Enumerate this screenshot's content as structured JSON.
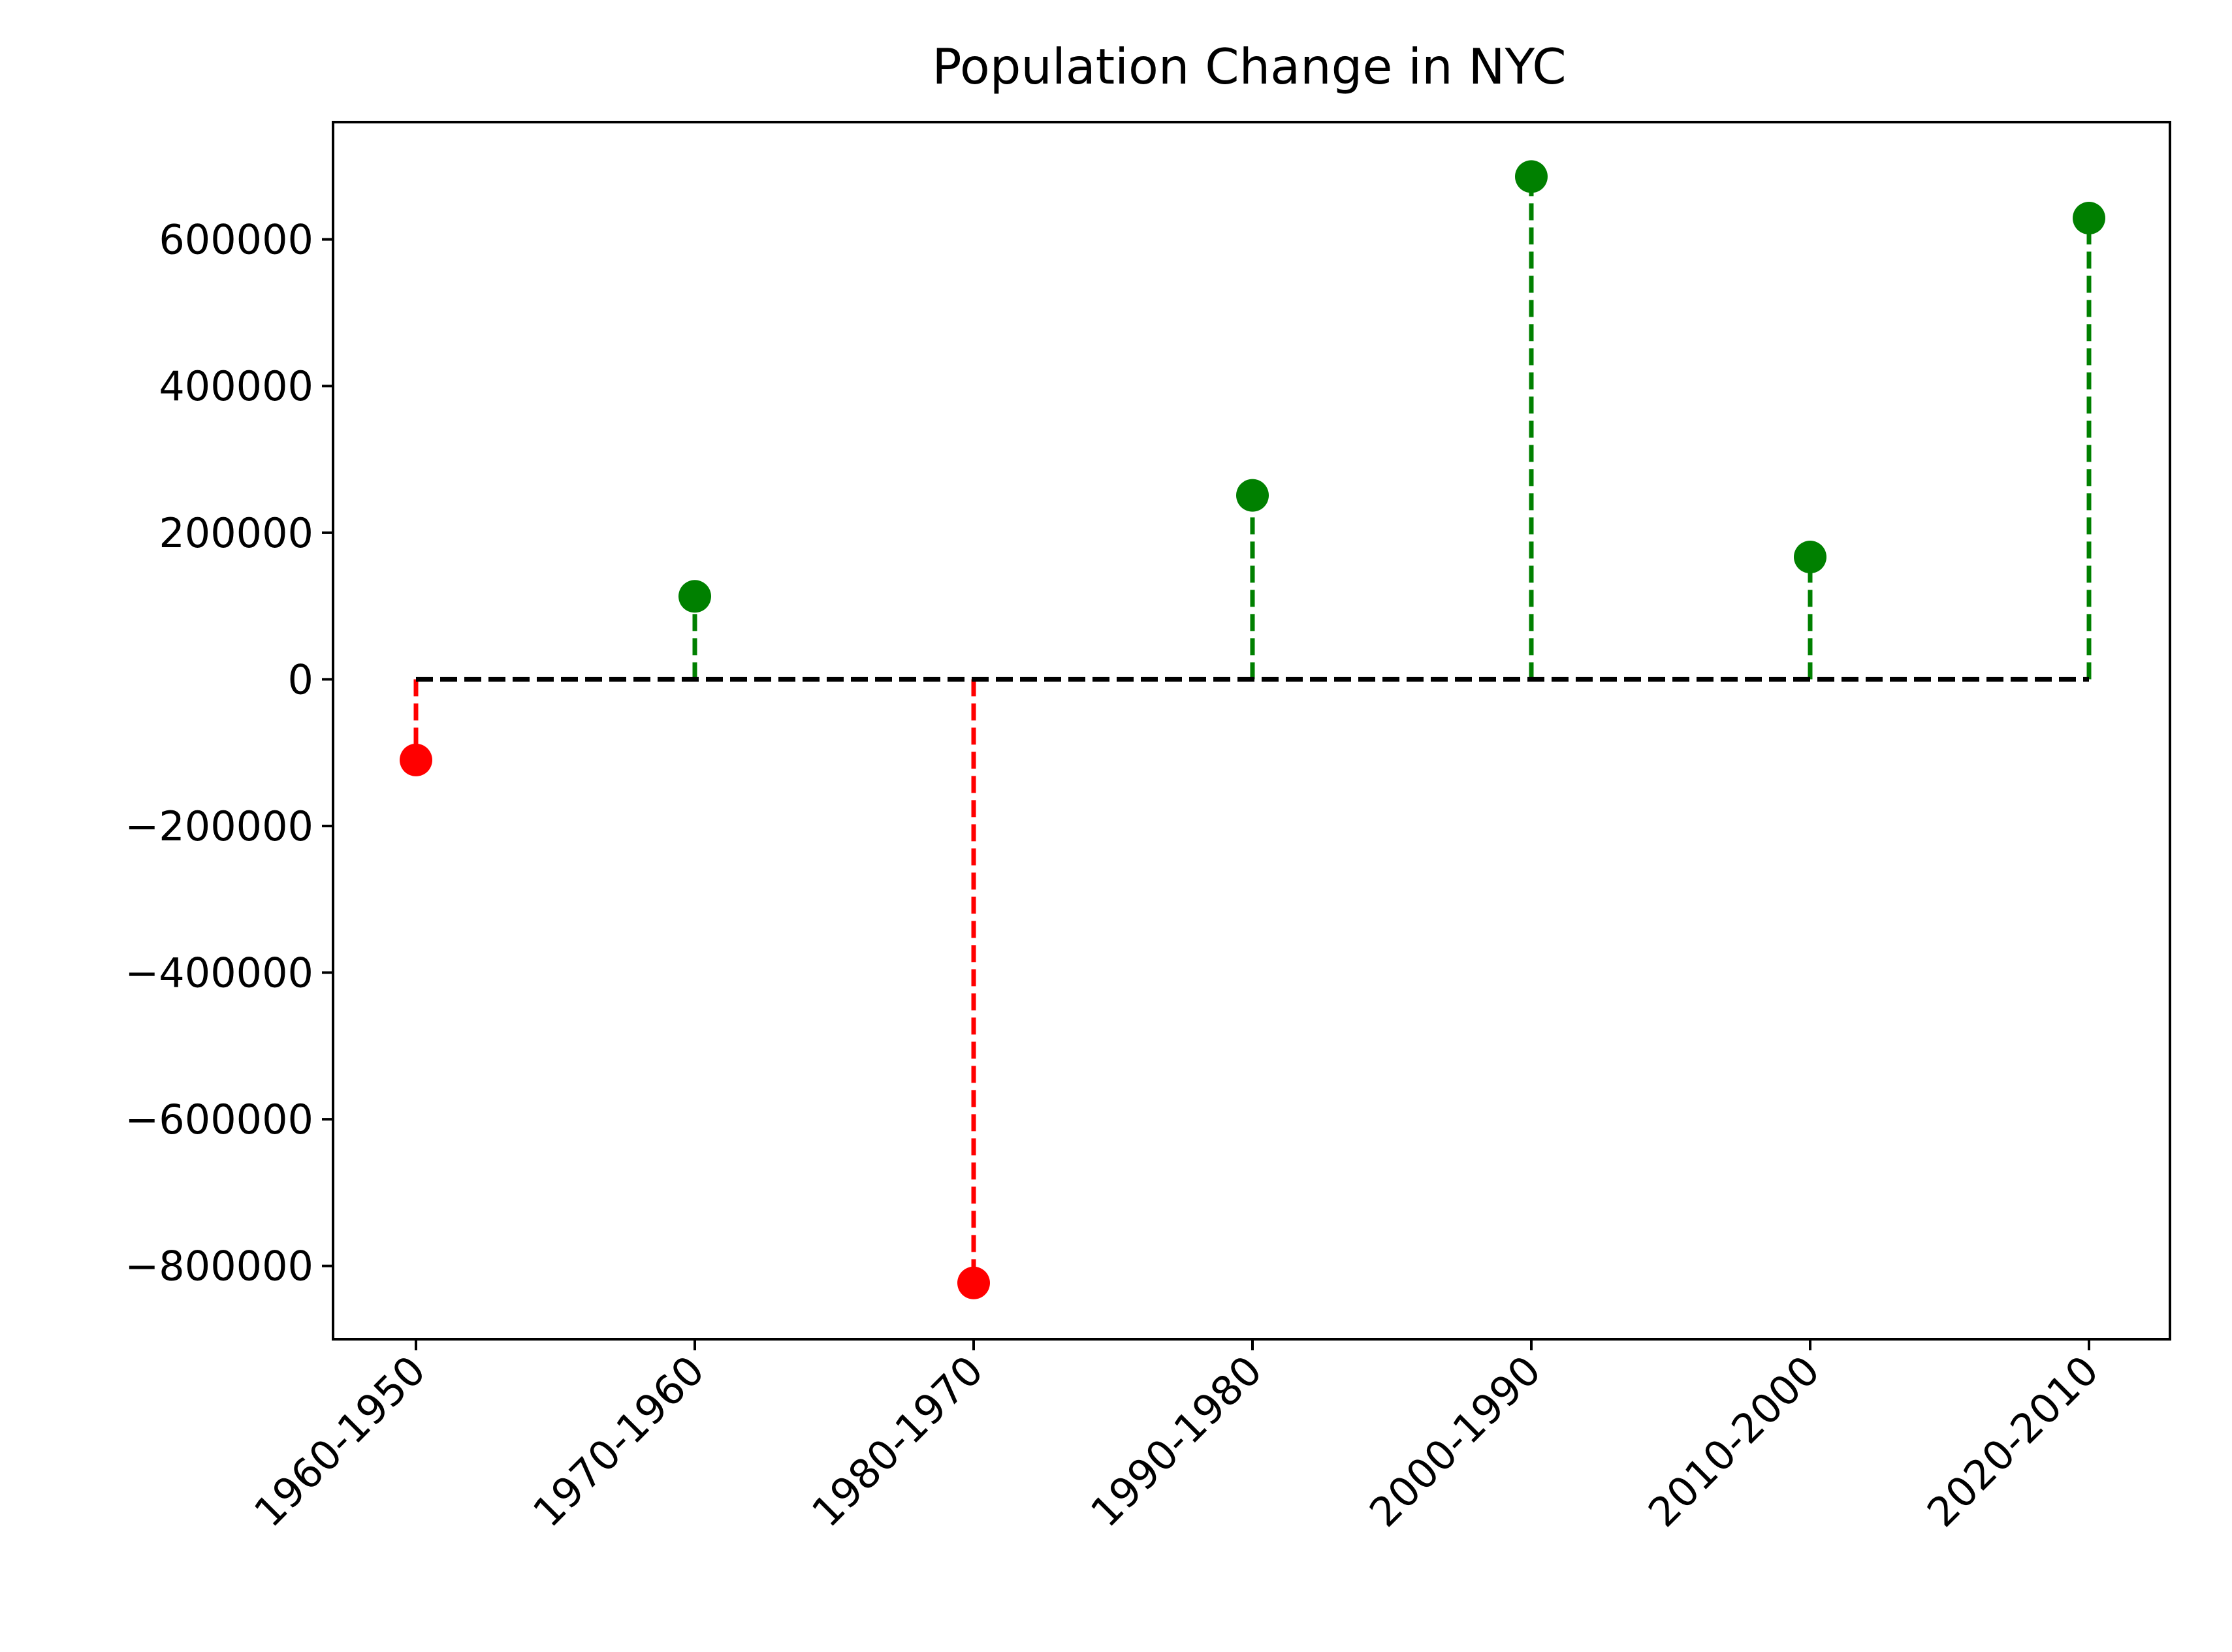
{
  "chart_data": {
    "type": "stem",
    "title": "Population Change in NYC",
    "xlabel": "",
    "ylabel": "",
    "categories": [
      "1960-1950",
      "1970-1960",
      "1980-1970",
      "1990-1980",
      "2000-1990",
      "2010-2000",
      "2020-2010"
    ],
    "values": [
      -109973,
      113196,
      -823223,
      250925,
      685714,
      166855,
      629057
    ],
    "ylim": [
      -900000,
      760000
    ],
    "yticks": [
      -800000,
      -600000,
      -400000,
      -200000,
      0,
      200000,
      400000,
      600000
    ],
    "ytick_labels": [
      "−800000",
      "−600000",
      "−400000",
      "−200000",
      "0",
      "200000",
      "400000",
      "600000"
    ],
    "grid": false,
    "legend": "none",
    "colors": {
      "positive": "#008000",
      "negative": "#ff0000",
      "baseline": "#000000"
    }
  }
}
